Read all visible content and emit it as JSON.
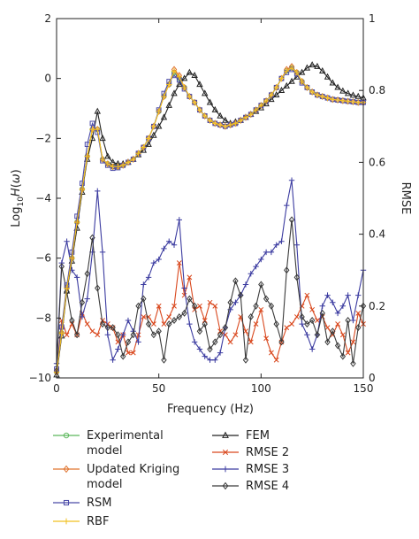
{
  "chart_data": {
    "type": "line",
    "xlabel": "Frequency (Hz)",
    "ylabel_left": "Log10H(ω)",
    "ylabel_right": "RMSE",
    "xlim": [
      0,
      150
    ],
    "ylim_left": [
      -10,
      2
    ],
    "ylim_right": [
      0,
      1
    ],
    "xticks": [
      0,
      50,
      100,
      150
    ],
    "xtick_labels": [
      "0",
      "50",
      "100",
      "150"
    ],
    "yticks_left": [
      -10,
      -8,
      -6,
      -4,
      -2,
      0,
      2
    ],
    "ytick_labels_left": [
      "−10",
      "−8",
      "−6",
      "−4",
      "−2",
      "0",
      "2"
    ],
    "yticks_right": [
      0,
      0.2,
      0.4,
      0.6,
      0.8,
      1
    ],
    "ytick_labels_right": [
      "0",
      "0.2",
      "0.4",
      "0.6",
      "0.8",
      "1"
    ],
    "grid": false,
    "legend_position": "bottom",
    "series": [
      {
        "name": "Experimental model",
        "axis": "left",
        "color": "#5cb85c",
        "marker": "circle",
        "x": [
          0,
          2.5,
          5,
          7.5,
          10,
          12.5,
          15,
          17.5,
          20,
          22.5,
          25,
          27.5,
          30,
          32.5,
          35,
          37.5,
          40,
          42.5,
          45,
          47.5,
          50,
          52.5,
          55,
          57.5,
          60,
          62.5,
          65,
          67.5,
          70,
          72.5,
          75,
          77.5,
          80,
          82.5,
          85,
          87.5,
          90,
          92.5,
          95,
          97.5,
          100,
          102.5,
          105,
          107.5,
          110,
          112.5,
          115,
          117.5,
          120,
          122.5,
          125,
          127.5,
          130,
          132.5,
          135,
          137.5,
          140,
          142.5,
          145,
          147.5,
          150
        ],
        "y": [
          -9.8,
          -8.5,
          -7.0,
          -6.0,
          -4.8,
          -3.7,
          -2.6,
          -1.7,
          -1.7,
          -2.7,
          -2.85,
          -2.95,
          -2.95,
          -2.9,
          -2.8,
          -2.7,
          -2.5,
          -2.3,
          -2.0,
          -1.6,
          -1.1,
          -0.6,
          -0.2,
          0.2,
          0.0,
          -0.3,
          -0.6,
          -0.8,
          -1.05,
          -1.25,
          -1.4,
          -1.5,
          -1.55,
          -1.6,
          -1.55,
          -1.5,
          -1.4,
          -1.3,
          -1.2,
          -1.05,
          -0.9,
          -0.75,
          -0.55,
          -0.3,
          0.0,
          0.25,
          0.35,
          0.2,
          -0.1,
          -0.3,
          -0.45,
          -0.55,
          -0.6,
          -0.65,
          -0.7,
          -0.72,
          -0.74,
          -0.76,
          -0.78,
          -0.8,
          -0.8
        ]
      },
      {
        "name": "Updated Kriging model",
        "axis": "left",
        "color": "#e0732e",
        "marker": "diamond",
        "x": [
          0,
          2.5,
          5,
          7.5,
          10,
          12.5,
          15,
          17.5,
          20,
          22.5,
          25,
          27.5,
          30,
          32.5,
          35,
          37.5,
          40,
          42.5,
          45,
          47.5,
          50,
          52.5,
          55,
          57.5,
          60,
          62.5,
          65,
          67.5,
          70,
          72.5,
          75,
          77.5,
          80,
          82.5,
          85,
          87.5,
          90,
          92.5,
          95,
          97.5,
          100,
          102.5,
          105,
          107.5,
          110,
          112.5,
          115,
          117.5,
          120,
          122.5,
          125,
          127.5,
          130,
          132.5,
          135,
          137.5,
          140,
          142.5,
          145,
          147.5,
          150
        ],
        "y": [
          -9.8,
          -8.5,
          -7.0,
          -6.0,
          -4.8,
          -3.7,
          -2.6,
          -1.7,
          -1.7,
          -2.7,
          -2.85,
          -2.95,
          -2.95,
          -2.9,
          -2.8,
          -2.7,
          -2.5,
          -2.3,
          -2.0,
          -1.6,
          -1.1,
          -0.6,
          -0.2,
          0.3,
          0.1,
          -0.3,
          -0.6,
          -0.8,
          -1.05,
          -1.25,
          -1.4,
          -1.5,
          -1.55,
          -1.6,
          -1.55,
          -1.5,
          -1.4,
          -1.3,
          -1.2,
          -1.05,
          -0.9,
          -0.75,
          -0.55,
          -0.3,
          0.0,
          0.3,
          0.4,
          0.2,
          -0.1,
          -0.3,
          -0.45,
          -0.55,
          -0.6,
          -0.65,
          -0.7,
          -0.72,
          -0.74,
          -0.76,
          -0.78,
          -0.8,
          -0.8
        ]
      },
      {
        "name": "RSM",
        "axis": "left",
        "color": "#4a4aa8",
        "marker": "square",
        "x": [
          0,
          2.5,
          5,
          7.5,
          10,
          12.5,
          15,
          17.5,
          20,
          22.5,
          25,
          27.5,
          30,
          32.5,
          35,
          37.5,
          40,
          42.5,
          45,
          47.5,
          50,
          52.5,
          55,
          57.5,
          60,
          62.5,
          65,
          67.5,
          70,
          72.5,
          75,
          77.5,
          80,
          82.5,
          85,
          87.5,
          90,
          92.5,
          95,
          97.5,
          100,
          102.5,
          105,
          107.5,
          110,
          112.5,
          115,
          117.5,
          120,
          122.5,
          125,
          127.5,
          130,
          132.5,
          135,
          137.5,
          140,
          142.5,
          145,
          147.5,
          150
        ],
        "y": [
          -9.7,
          -8.3,
          -6.9,
          -5.8,
          -4.6,
          -3.5,
          -2.2,
          -1.5,
          -1.8,
          -2.75,
          -2.9,
          -3.0,
          -2.98,
          -2.9,
          -2.8,
          -2.7,
          -2.5,
          -2.3,
          -2.0,
          -1.6,
          -1.05,
          -0.5,
          -0.1,
          0.1,
          -0.05,
          -0.35,
          -0.6,
          -0.8,
          -1.05,
          -1.25,
          -1.4,
          -1.5,
          -1.55,
          -1.6,
          -1.55,
          -1.5,
          -1.4,
          -1.3,
          -1.2,
          -1.05,
          -0.9,
          -0.75,
          -0.55,
          -0.3,
          0.0,
          0.2,
          0.3,
          0.15,
          -0.15,
          -0.3,
          -0.45,
          -0.55,
          -0.6,
          -0.65,
          -0.7,
          -0.72,
          -0.74,
          -0.76,
          -0.78,
          -0.8,
          -0.8
        ]
      },
      {
        "name": "RBF",
        "axis": "left",
        "color": "#f0c020",
        "marker": "plus",
        "x": [
          0,
          2.5,
          5,
          7.5,
          10,
          12.5,
          15,
          17.5,
          20,
          22.5,
          25,
          27.5,
          30,
          32.5,
          35,
          37.5,
          40,
          42.5,
          45,
          47.5,
          50,
          52.5,
          55,
          57.5,
          60,
          62.5,
          65,
          67.5,
          70,
          72.5,
          75,
          77.5,
          80,
          82.5,
          85,
          87.5,
          90,
          92.5,
          95,
          97.5,
          100,
          102.5,
          105,
          107.5,
          110,
          112.5,
          115,
          117.5,
          120,
          122.5,
          125,
          127.5,
          130,
          132.5,
          135,
          137.5,
          140,
          142.5,
          145,
          147.5,
          150
        ],
        "y": [
          -9.8,
          -8.5,
          -7.0,
          -6.0,
          -4.8,
          -3.7,
          -2.6,
          -1.7,
          -1.7,
          -2.7,
          -2.85,
          -2.95,
          -2.95,
          -2.9,
          -2.8,
          -2.7,
          -2.5,
          -2.3,
          -2.0,
          -1.6,
          -1.1,
          -0.6,
          -0.2,
          0.25,
          0.05,
          -0.3,
          -0.6,
          -0.8,
          -1.05,
          -1.25,
          -1.4,
          -1.5,
          -1.55,
          -1.6,
          -1.55,
          -1.5,
          -1.4,
          -1.3,
          -1.2,
          -1.05,
          -0.9,
          -0.75,
          -0.55,
          -0.3,
          0.0,
          0.25,
          0.35,
          0.2,
          -0.1,
          -0.3,
          -0.45,
          -0.55,
          -0.6,
          -0.65,
          -0.7,
          -0.72,
          -0.74,
          -0.76,
          -0.78,
          -0.8,
          -0.8
        ]
      },
      {
        "name": "FEM",
        "axis": "left",
        "color": "#222222",
        "marker": "triangle",
        "x": [
          0,
          2.5,
          5,
          7.5,
          10,
          12.5,
          15,
          17.5,
          20,
          22.5,
          25,
          27.5,
          30,
          32.5,
          35,
          37.5,
          40,
          42.5,
          45,
          47.5,
          50,
          52.5,
          55,
          57.5,
          60,
          62.5,
          65,
          67.5,
          70,
          72.5,
          75,
          77.5,
          80,
          82.5,
          85,
          87.5,
          90,
          92.5,
          95,
          97.5,
          100,
          102.5,
          105,
          107.5,
          110,
          112.5,
          115,
          117.5,
          120,
          122.5,
          125,
          127.5,
          130,
          132.5,
          135,
          137.5,
          140,
          142.5,
          145,
          147.5,
          150
        ],
        "y": [
          -9.9,
          -8.6,
          -7.1,
          -6.1,
          -5.0,
          -3.8,
          -2.7,
          -2.0,
          -1.1,
          -2.0,
          -2.6,
          -2.8,
          -2.85,
          -2.85,
          -2.8,
          -2.7,
          -2.55,
          -2.4,
          -2.2,
          -1.9,
          -1.6,
          -1.3,
          -0.9,
          -0.5,
          -0.2,
          0.0,
          0.2,
          0.1,
          -0.2,
          -0.5,
          -0.8,
          -1.05,
          -1.25,
          -1.4,
          -1.5,
          -1.45,
          -1.4,
          -1.3,
          -1.2,
          -1.1,
          -0.98,
          -0.85,
          -0.7,
          -0.55,
          -0.4,
          -0.25,
          -0.1,
          0.05,
          0.2,
          0.35,
          0.45,
          0.4,
          0.25,
          0.05,
          -0.15,
          -0.3,
          -0.42,
          -0.5,
          -0.56,
          -0.6,
          -0.65
        ]
      },
      {
        "name": "RMSE 2",
        "axis": "right",
        "color": "#d9481e",
        "marker": "x",
        "x": [
          0,
          2.5,
          5,
          7.5,
          10,
          12.5,
          15,
          17.5,
          20,
          22.5,
          25,
          27.5,
          30,
          32.5,
          35,
          37.5,
          40,
          42.5,
          45,
          47.5,
          50,
          52.5,
          55,
          57.5,
          60,
          62.5,
          65,
          67.5,
          70,
          72.5,
          75,
          77.5,
          80,
          82.5,
          85,
          87.5,
          90,
          92.5,
          95,
          97.5,
          100,
          102.5,
          105,
          107.5,
          110,
          112.5,
          115,
          117.5,
          120,
          122.5,
          125,
          127.5,
          130,
          132.5,
          135,
          137.5,
          140,
          142.5,
          145,
          147.5,
          150
        ],
        "y": [
          0.02,
          0.16,
          0.12,
          0.15,
          0.12,
          0.18,
          0.15,
          0.13,
          0.12,
          0.16,
          0.15,
          0.14,
          0.1,
          0.12,
          0.07,
          0.07,
          0.12,
          0.17,
          0.17,
          0.15,
          0.2,
          0.15,
          0.17,
          0.2,
          0.32,
          0.23,
          0.28,
          0.19,
          0.2,
          0.16,
          0.21,
          0.2,
          0.13,
          0.12,
          0.1,
          0.12,
          0.17,
          0.13,
          0.1,
          0.15,
          0.19,
          0.11,
          0.07,
          0.05,
          0.1,
          0.14,
          0.15,
          0.17,
          0.2,
          0.23,
          0.19,
          0.16,
          0.17,
          0.14,
          0.12,
          0.15,
          0.12,
          0.07,
          0.1,
          0.18,
          0.15
        ]
      },
      {
        "name": "RMSE 3",
        "axis": "right",
        "color": "#3b3ba0",
        "marker": "plus",
        "x": [
          0,
          2.5,
          5,
          7.5,
          10,
          12.5,
          15,
          17.5,
          20,
          22.5,
          25,
          27.5,
          30,
          32.5,
          35,
          37.5,
          40,
          42.5,
          45,
          47.5,
          50,
          52.5,
          55,
          57.5,
          60,
          62.5,
          65,
          67.5,
          70,
          72.5,
          75,
          77.5,
          80,
          82.5,
          85,
          87.5,
          90,
          92.5,
          95,
          97.5,
          100,
          102.5,
          105,
          107.5,
          110,
          112.5,
          115,
          117.5,
          120,
          122.5,
          125,
          127.5,
          130,
          132.5,
          135,
          137.5,
          140,
          142.5,
          145,
          147.5,
          150
        ],
        "y": [
          0.04,
          0.32,
          0.38,
          0.3,
          0.28,
          0.17,
          0.22,
          0.35,
          0.52,
          0.35,
          0.12,
          0.05,
          0.08,
          0.12,
          0.16,
          0.13,
          0.1,
          0.26,
          0.28,
          0.32,
          0.33,
          0.36,
          0.38,
          0.37,
          0.44,
          0.25,
          0.15,
          0.1,
          0.08,
          0.06,
          0.05,
          0.05,
          0.07,
          0.14,
          0.19,
          0.21,
          0.23,
          0.26,
          0.29,
          0.31,
          0.33,
          0.35,
          0.35,
          0.37,
          0.38,
          0.48,
          0.55,
          0.37,
          0.15,
          0.12,
          0.08,
          0.12,
          0.2,
          0.23,
          0.21,
          0.18,
          0.2,
          0.23,
          0.16,
          0.23,
          0.3
        ]
      },
      {
        "name": "RMSE 4",
        "axis": "right",
        "color": "#3a3a3a",
        "marker": "diamond",
        "x": [
          0,
          2.5,
          5,
          7.5,
          10,
          12.5,
          15,
          17.5,
          20,
          22.5,
          25,
          27.5,
          30,
          32.5,
          35,
          37.5,
          40,
          42.5,
          45,
          47.5,
          50,
          52.5,
          55,
          57.5,
          60,
          62.5,
          65,
          67.5,
          70,
          72.5,
          75,
          77.5,
          80,
          82.5,
          85,
          87.5,
          90,
          92.5,
          95,
          97.5,
          100,
          102.5,
          105,
          107.5,
          110,
          112.5,
          115,
          117.5,
          120,
          122.5,
          125,
          127.5,
          130,
          132.5,
          135,
          137.5,
          140,
          142.5,
          145,
          147.5,
          150
        ],
        "y": [
          0.02,
          0.31,
          0.24,
          0.16,
          0.12,
          0.21,
          0.29,
          0.39,
          0.25,
          0.15,
          0.14,
          0.14,
          0.12,
          0.06,
          0.1,
          0.12,
          0.2,
          0.22,
          0.15,
          0.12,
          0.13,
          0.05,
          0.15,
          0.16,
          0.17,
          0.18,
          0.22,
          0.2,
          0.13,
          0.15,
          0.08,
          0.1,
          0.12,
          0.14,
          0.21,
          0.27,
          0.23,
          0.05,
          0.17,
          0.2,
          0.26,
          0.22,
          0.2,
          0.15,
          0.1,
          0.3,
          0.44,
          0.28,
          0.17,
          0.15,
          0.16,
          0.12,
          0.18,
          0.1,
          0.13,
          0.09,
          0.06,
          0.16,
          0.04,
          0.14,
          0.2
        ]
      }
    ]
  }
}
